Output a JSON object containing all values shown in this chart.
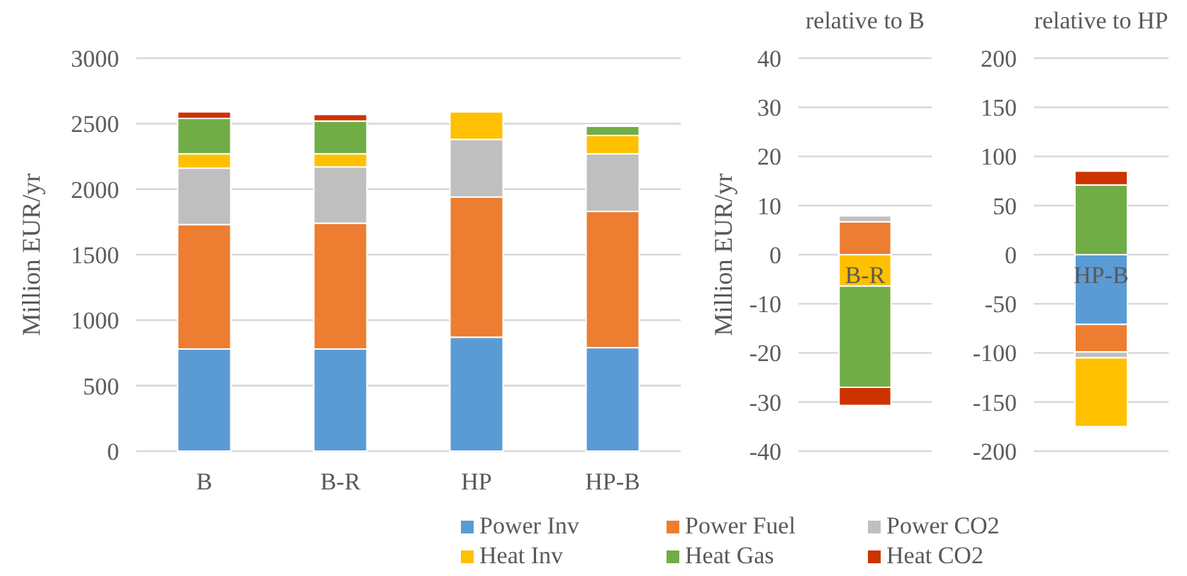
{
  "chart_data": [
    {
      "type": "bar",
      "stacked": true,
      "ylabel": "Million EUR/yr",
      "categories": [
        "B",
        "B-R",
        "HP",
        "HP-B"
      ],
      "ylim": [
        0,
        3000
      ],
      "yticks": [
        0,
        500,
        1000,
        1500,
        2000,
        2500,
        3000
      ],
      "grid": "y",
      "legend": "bottom",
      "series": [
        {
          "name": "Power Inv",
          "color": "#5b9bd5",
          "values": [
            780,
            780,
            870,
            790
          ]
        },
        {
          "name": "Power Fuel",
          "color": "#ed7d31",
          "values": [
            950,
            960,
            1070,
            1040
          ]
        },
        {
          "name": "Power CO2",
          "color": "#bfbfbf",
          "values": [
            430,
            430,
            440,
            440
          ]
        },
        {
          "name": "Heat Inv",
          "color": "#ffc000",
          "values": [
            110,
            100,
            210,
            140
          ]
        },
        {
          "name": "Heat Gas",
          "color": "#70ad47",
          "values": [
            270,
            250,
            0,
            70
          ]
        },
        {
          "name": "Heat CO2",
          "color": "#cc3300",
          "values": [
            50,
            50,
            0,
            10
          ]
        }
      ]
    },
    {
      "type": "bar",
      "stacked": true,
      "title": "relative to B",
      "ylabel": "Million EUR/yr",
      "categories": [
        "B-R"
      ],
      "ylim": [
        -40,
        40
      ],
      "yticks": [
        -40,
        -30,
        -20,
        -10,
        0,
        10,
        20,
        30,
        40
      ],
      "grid": "y",
      "series": [
        {
          "color": "#5b9bd5",
          "values": [
            0
          ]
        },
        {
          "color": "#ed7d31",
          "values": [
            6.7
          ]
        },
        {
          "color": "#bfbfbf",
          "values": [
            1.2
          ]
        },
        {
          "color": "#ffc000",
          "values": [
            -6.4
          ]
        },
        {
          "color": "#70ad47",
          "values": [
            -20.6
          ]
        },
        {
          "color": "#cc3300",
          "values": [
            -3.7
          ]
        }
      ]
    },
    {
      "type": "bar",
      "stacked": true,
      "title": "relative to HP",
      "categories": [
        "HP-B"
      ],
      "ylim": [
        -200,
        200
      ],
      "yticks": [
        -200,
        -150,
        -100,
        -50,
        0,
        50,
        100,
        150,
        200
      ],
      "grid": "y",
      "series": [
        {
          "color": "#5b9bd5",
          "values": [
            -71
          ]
        },
        {
          "color": "#ed7d31",
          "values": [
            -28
          ]
        },
        {
          "color": "#bfbfbf",
          "values": [
            -6
          ]
        },
        {
          "color": "#ffc000",
          "values": [
            -70
          ]
        },
        {
          "color": "#70ad47",
          "values": [
            71
          ]
        },
        {
          "color": "#cc3300",
          "values": [
            14
          ]
        }
      ]
    }
  ]
}
